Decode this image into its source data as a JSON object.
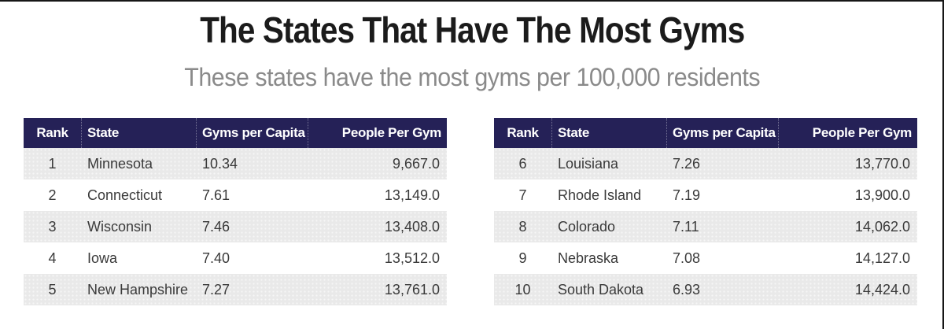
{
  "page": {
    "title": "The States That Have The Most Gyms",
    "subtitle": "These states have the most gyms per 100,000 residents"
  },
  "colors": {
    "header_bg": "#252157",
    "header_text": "#ffffff",
    "alt_row_bg": "#e9e9e9",
    "body_text": "#3a3a3a",
    "title_text": "#1b1b1b",
    "subtitle_text": "#8a8a8a"
  },
  "tables": [
    {
      "columns": [
        "Rank",
        "State",
        "Gyms per Capita",
        "People Per Gym"
      ],
      "rows": [
        [
          "1",
          "Minnesota",
          "10.34",
          "9,667.0"
        ],
        [
          "2",
          "Connecticut",
          "7.61",
          "13,149.0"
        ],
        [
          "3",
          "Wisconsin",
          "7.46",
          "13,408.0"
        ],
        [
          "4",
          "Iowa",
          "7.40",
          "13,512.0"
        ],
        [
          "5",
          "New Hampshire",
          "7.27",
          "13,761.0"
        ]
      ]
    },
    {
      "columns": [
        "Rank",
        "State",
        "Gyms per Capita",
        "People Per Gym"
      ],
      "rows": [
        [
          "6",
          "Louisiana",
          "7.26",
          "13,770.0"
        ],
        [
          "7",
          "Rhode Island",
          "7.19",
          "13,900.0"
        ],
        [
          "8",
          "Colorado",
          "7.11",
          "14,062.0"
        ],
        [
          "9",
          "Nebraska",
          "7.08",
          "14,127.0"
        ],
        [
          "10",
          "South Dakota",
          "6.93",
          "14,424.0"
        ]
      ]
    }
  ],
  "chart_data": {
    "type": "table",
    "title": "The States That Have The Most Gyms",
    "subtitle": "These states have the most gyms per 100,000 residents",
    "columns": [
      "Rank",
      "State",
      "Gyms per Capita",
      "People Per Gym"
    ],
    "rows": [
      [
        1,
        "Minnesota",
        10.34,
        9667.0
      ],
      [
        2,
        "Connecticut",
        7.61,
        13149.0
      ],
      [
        3,
        "Wisconsin",
        7.46,
        13408.0
      ],
      [
        4,
        "Iowa",
        7.4,
        13512.0
      ],
      [
        5,
        "New Hampshire",
        7.27,
        13761.0
      ],
      [
        6,
        "Louisiana",
        7.26,
        13770.0
      ],
      [
        7,
        "Rhode Island",
        7.19,
        13900.0
      ],
      [
        8,
        "Colorado",
        7.11,
        14062.0
      ],
      [
        9,
        "Nebraska",
        7.08,
        14127.0
      ],
      [
        10,
        "South Dakota",
        6.93,
        14424.0
      ]
    ]
  }
}
